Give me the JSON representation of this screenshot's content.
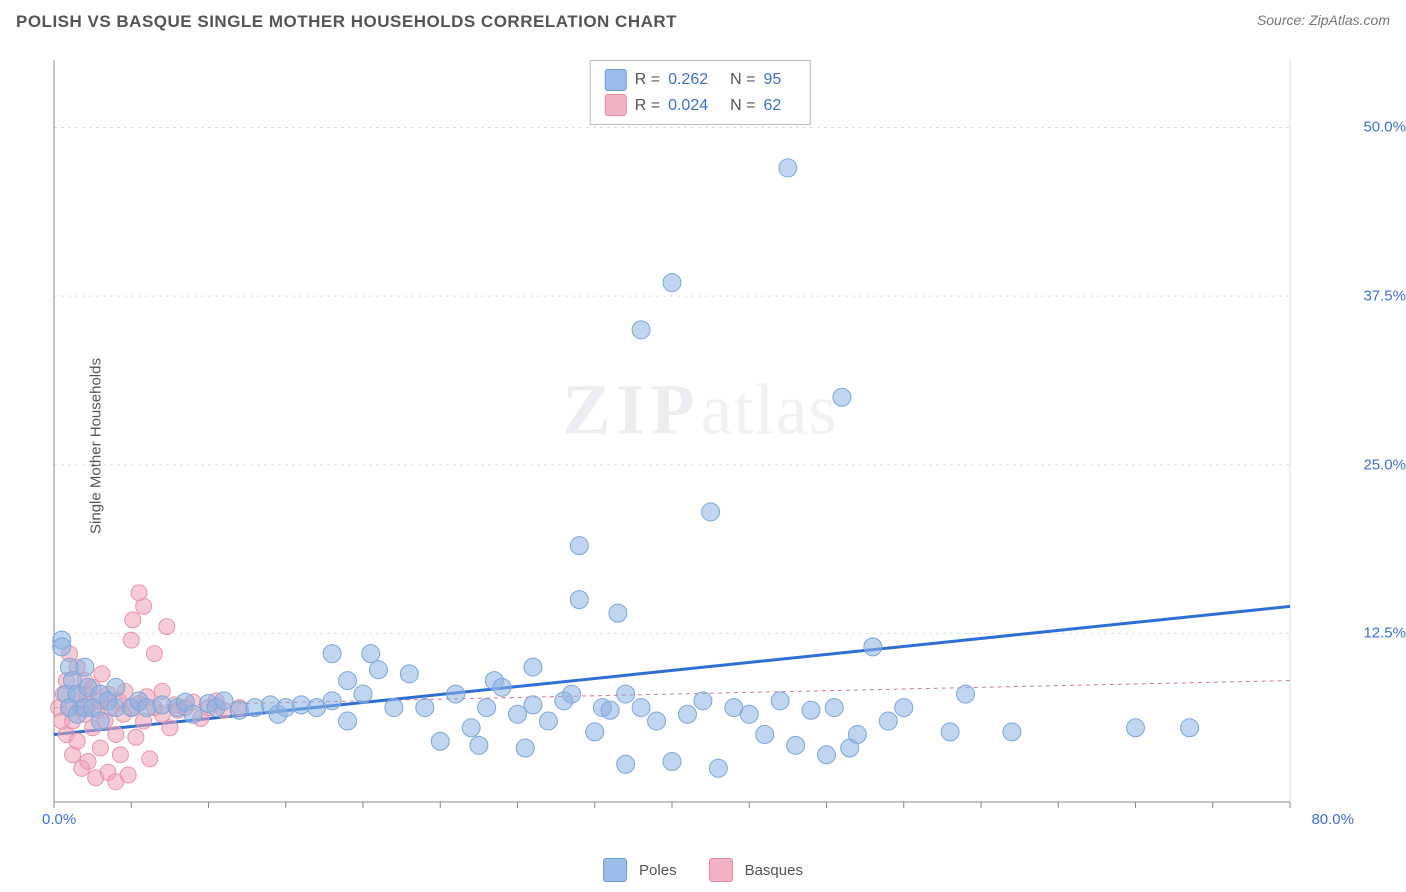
{
  "header": {
    "title": "POLISH VS BASQUE SINGLE MOTHER HOUSEHOLDS CORRELATION CHART",
    "source_prefix": "Source: ",
    "source_name": "ZipAtlas.com"
  },
  "axes": {
    "y_label": "Single Mother Households",
    "x_min_label": "0.0%",
    "x_max_label": "80.0%",
    "x_min": 0,
    "x_max": 80,
    "y_min": 0,
    "y_max": 55,
    "y_ticks": [
      {
        "v": 12.5,
        "label": "12.5%"
      },
      {
        "v": 25.0,
        "label": "25.0%"
      },
      {
        "v": 37.5,
        "label": "37.5%"
      },
      {
        "v": 50.0,
        "label": "50.0%"
      }
    ],
    "x_tick_step": 5,
    "grid_color": "#dddddd",
    "axis_color": "#888888"
  },
  "series": {
    "poles": {
      "label": "Poles",
      "fill": "rgba(141,179,226,0.55)",
      "stroke": "#7ca6db",
      "swatch_fill": "#9cbde8",
      "swatch_border": "#6a9bd6",
      "marker_r": 9,
      "trend": {
        "x1": 0,
        "y1": 5,
        "x2": 80,
        "y2": 14.5,
        "color": "#2e6fd6",
        "width": 3,
        "dash": "none"
      },
      "R": "0.262",
      "N": "95",
      "points": [
        [
          0.5,
          12
        ],
        [
          0.8,
          8
        ],
        [
          1,
          10
        ],
        [
          1,
          7
        ],
        [
          1.2,
          9
        ],
        [
          1.5,
          8
        ],
        [
          1.5,
          6.5
        ],
        [
          2,
          7
        ],
        [
          2,
          10
        ],
        [
          2.2,
          8.5
        ],
        [
          2.5,
          7
        ],
        [
          3,
          8
        ],
        [
          3,
          6
        ],
        [
          3.5,
          7.5
        ],
        [
          4,
          7
        ],
        [
          4,
          8.5
        ],
        [
          5,
          7
        ],
        [
          5.5,
          7.5
        ],
        [
          6,
          7
        ],
        [
          7,
          7.2
        ],
        [
          8,
          7
        ],
        [
          8.5,
          7.4
        ],
        [
          9,
          6.5
        ],
        [
          10,
          7.3
        ],
        [
          10.5,
          7
        ],
        [
          11,
          7.5
        ],
        [
          12,
          6.8
        ],
        [
          13,
          7
        ],
        [
          14,
          7.2
        ],
        [
          14.5,
          6.5
        ],
        [
          15,
          7
        ],
        [
          16,
          7.2
        ],
        [
          17,
          7
        ],
        [
          18,
          7.5
        ],
        [
          18,
          11
        ],
        [
          19,
          9
        ],
        [
          19,
          6
        ],
        [
          20,
          8
        ],
        [
          20.5,
          11
        ],
        [
          21,
          9.8
        ],
        [
          22,
          7
        ],
        [
          23,
          9.5
        ],
        [
          24,
          7
        ],
        [
          25,
          4.5
        ],
        [
          26,
          8
        ],
        [
          27,
          5.5
        ],
        [
          27.5,
          4.2
        ],
        [
          28,
          7
        ],
        [
          28.5,
          9
        ],
        [
          29,
          8.5
        ],
        [
          30,
          6.5
        ],
        [
          30.5,
          4
        ],
        [
          31,
          7.2
        ],
        [
          31,
          10
        ],
        [
          32,
          6
        ],
        [
          33,
          7.5
        ],
        [
          33.5,
          8
        ],
        [
          34,
          15
        ],
        [
          34,
          19
        ],
        [
          35,
          5.2
        ],
        [
          35.5,
          7
        ],
        [
          36,
          6.8
        ],
        [
          36.5,
          14
        ],
        [
          37,
          8
        ],
        [
          37,
          2.8
        ],
        [
          38,
          7
        ],
        [
          38,
          35
        ],
        [
          39,
          6
        ],
        [
          40,
          3
        ],
        [
          40,
          38.5
        ],
        [
          41,
          6.5
        ],
        [
          42,
          7.5
        ],
        [
          42.5,
          21.5
        ],
        [
          43,
          2.5
        ],
        [
          44,
          7
        ],
        [
          45,
          6.5
        ],
        [
          46,
          5
        ],
        [
          47,
          7.5
        ],
        [
          47.5,
          47
        ],
        [
          48,
          4.2
        ],
        [
          49,
          6.8
        ],
        [
          50,
          3.5
        ],
        [
          50.5,
          7
        ],
        [
          51,
          30
        ],
        [
          51.5,
          4
        ],
        [
          52,
          5
        ],
        [
          53,
          11.5
        ],
        [
          54,
          6
        ],
        [
          55,
          7
        ],
        [
          58,
          5.2
        ],
        [
          59,
          8
        ],
        [
          62,
          5.2
        ],
        [
          70,
          5.5
        ],
        [
          73.5,
          5.5
        ],
        [
          0.5,
          11.5
        ]
      ]
    },
    "basques": {
      "label": "Basques",
      "fill": "rgba(240,160,180,0.55)",
      "stroke": "#e796ab",
      "swatch_fill": "#f1b3c3",
      "swatch_border": "#e48ba4",
      "marker_r": 8,
      "trend": {
        "x1": 0,
        "y1": 7,
        "x2": 80,
        "y2": 9,
        "color": "#d6768f",
        "width": 1,
        "dash": "4,4"
      },
      "R": "0.024",
      "N": "62",
      "points": [
        [
          0.3,
          7
        ],
        [
          0.5,
          6
        ],
        [
          0.6,
          8
        ],
        [
          0.8,
          5
        ],
        [
          0.8,
          9
        ],
        [
          1,
          7
        ],
        [
          1,
          11
        ],
        [
          1.2,
          3.5
        ],
        [
          1.2,
          6
        ],
        [
          1.4,
          8
        ],
        [
          1.5,
          4.5
        ],
        [
          1.5,
          10
        ],
        [
          1.7,
          7
        ],
        [
          1.8,
          2.5
        ],
        [
          2,
          6.5
        ],
        [
          2,
          9
        ],
        [
          2.1,
          8
        ],
        [
          2.2,
          3
        ],
        [
          2.3,
          7.2
        ],
        [
          2.5,
          5.5
        ],
        [
          2.5,
          8.5
        ],
        [
          2.7,
          1.8
        ],
        [
          2.8,
          6.8
        ],
        [
          3,
          7.5
        ],
        [
          3,
          4
        ],
        [
          3.1,
          9.5
        ],
        [
          3.3,
          6
        ],
        [
          3.5,
          2.2
        ],
        [
          3.5,
          8
        ],
        [
          3.7,
          7
        ],
        [
          4,
          5
        ],
        [
          4,
          1.5
        ],
        [
          4.2,
          7.5
        ],
        [
          4.3,
          3.5
        ],
        [
          4.5,
          6.5
        ],
        [
          4.6,
          8.2
        ],
        [
          4.8,
          2
        ],
        [
          5,
          7
        ],
        [
          5,
          12
        ],
        [
          5.1,
          13.5
        ],
        [
          5.3,
          4.8
        ],
        [
          5.5,
          7.3
        ],
        [
          5.5,
          15.5
        ],
        [
          5.8,
          6
        ],
        [
          5.8,
          14.5
        ],
        [
          6,
          7.8
        ],
        [
          6.2,
          3.2
        ],
        [
          6.5,
          7
        ],
        [
          6.5,
          11
        ],
        [
          7,
          6.5
        ],
        [
          7,
          8.2
        ],
        [
          7.3,
          13
        ],
        [
          7.5,
          5.5
        ],
        [
          7.8,
          7.2
        ],
        [
          8,
          6.8
        ],
        [
          8.5,
          7
        ],
        [
          9,
          7.4
        ],
        [
          9.5,
          6.2
        ],
        [
          10,
          7
        ],
        [
          10.5,
          7.5
        ],
        [
          11,
          6.8
        ],
        [
          12,
          7
        ]
      ]
    }
  },
  "watermark": {
    "zip": "ZIP",
    "rest": "atlas"
  }
}
